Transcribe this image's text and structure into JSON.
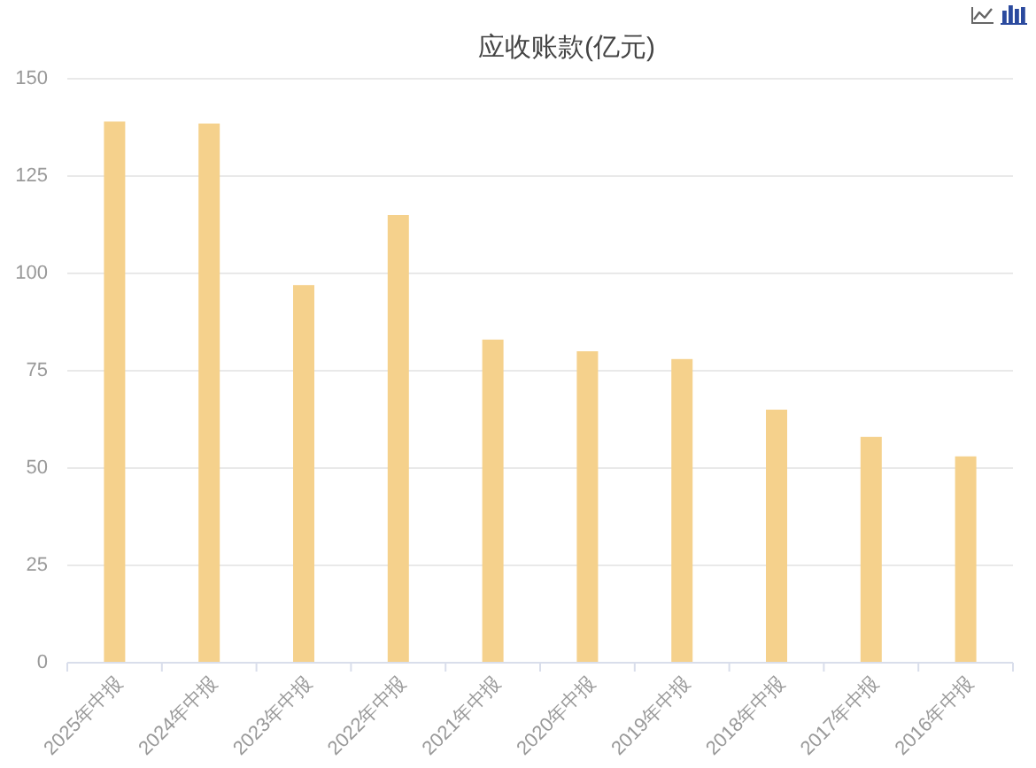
{
  "chart_data": {
    "type": "bar",
    "title": "应收账款(亿元)",
    "categories": [
      "2025年中报",
      "2024年中报",
      "2023年中报",
      "2022年中报",
      "2021年中报",
      "2020年中报",
      "2019年中报",
      "2018年中报",
      "2017年中报",
      "2016年中报"
    ],
    "values": [
      139,
      138.5,
      97,
      115,
      83,
      80,
      78,
      65,
      58,
      53
    ],
    "color": "#f5d18c",
    "ylim": [
      0,
      150
    ],
    "yticks": [
      0,
      25,
      50,
      75,
      100,
      125,
      150
    ],
    "grid": "y"
  }
}
